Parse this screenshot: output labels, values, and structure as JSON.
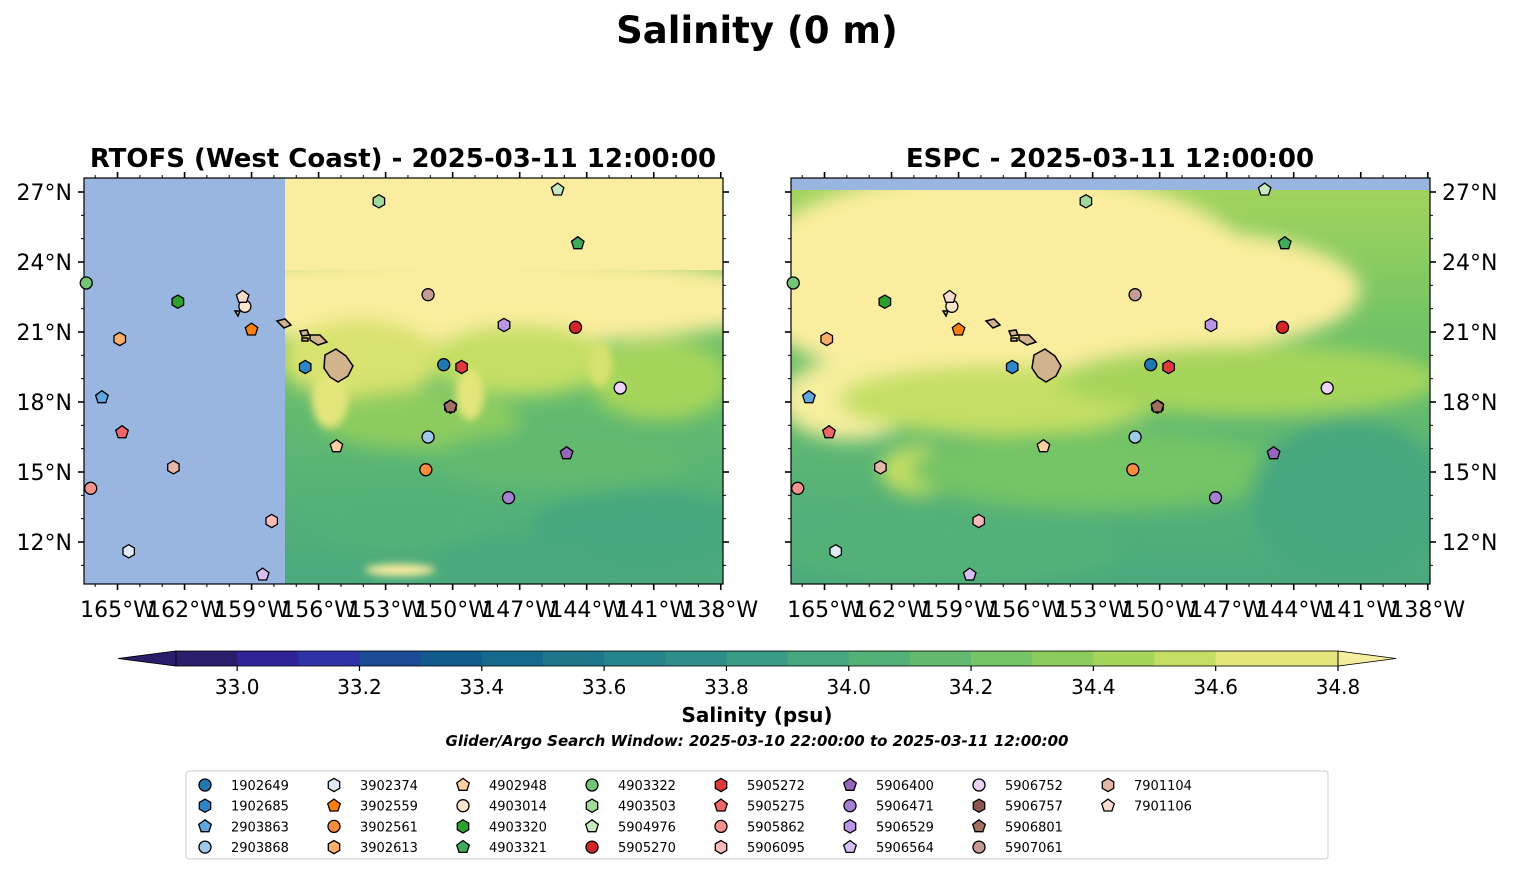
{
  "figure": {
    "title": "Salinity (0 m)",
    "colorbar_label": "Salinity (psu)",
    "search_window": "Glider/Argo Search Window: 2025-03-10 22:00:00 to 2025-03-11 12:00:00"
  },
  "colors": {
    "land": "#d2b48c",
    "nodata": "#98b6e0",
    "salty": "#fbed9f",
    "colorbar": [
      "#2a1d6b",
      "#30249a",
      "#2d32a6",
      "#1b4b94",
      "#115a8e",
      "#14698c",
      "#1e768b",
      "#25838b",
      "#2f8e89",
      "#3a9c85",
      "#46a77e",
      "#53b177",
      "#62ba70",
      "#75c465",
      "#8ccc5e",
      "#a6d55c",
      "#c4df64",
      "#e4e67b",
      "#f5ee9e"
    ]
  },
  "chart_data": [
    {
      "type": "heatmap",
      "panel": "left",
      "title": "RTOFS (West Coast) - 2025-03-11 12:00:00",
      "xlim": [
        -166.5,
        -137.9
      ],
      "ylim": [
        10.2,
        27.6
      ],
      "x_ticks": [
        -165,
        -162,
        -159,
        -156,
        -153,
        -150,
        -147,
        -144,
        -141,
        -138
      ],
      "x_tick_labels": [
        "165°W",
        "162°W",
        "159°W",
        "156°W",
        "153°W",
        "150°W",
        "147°W",
        "144°W",
        "141°W",
        "138°W"
      ],
      "y_ticks": [
        12,
        15,
        18,
        21,
        24,
        27
      ],
      "y_tick_labels": [
        "12°N",
        "15°N",
        "18°N",
        "21°N",
        "24°N",
        "27°N"
      ],
      "grid": false,
      "nodata_west_of_lon": -157.5
    },
    {
      "type": "heatmap",
      "panel": "right",
      "title": "ESPC - 2025-03-11 12:00:00",
      "xlim": [
        -166.5,
        -137.9
      ],
      "ylim": [
        10.2,
        27.6
      ],
      "x_ticks": [
        -165,
        -162,
        -159,
        -156,
        -153,
        -150,
        -147,
        -144,
        -141,
        -138
      ],
      "x_tick_labels": [
        "165°W",
        "162°W",
        "159°W",
        "156°W",
        "153°W",
        "150°W",
        "147°W",
        "144°W",
        "141°W",
        "138°W"
      ],
      "y_ticks": [
        12,
        15,
        18,
        21,
        24,
        27
      ],
      "y_tick_labels": [
        "12°N",
        "15°N",
        "18°N",
        "21°N",
        "24°N",
        "27°N"
      ],
      "grid": false,
      "nodata_north_of_lat": 27.1
    },
    {
      "type": "colorbar",
      "range": [
        32.9,
        34.9
      ],
      "ticks": [
        33.0,
        33.2,
        33.4,
        33.6,
        33.8,
        34.0,
        34.2,
        34.4,
        34.6,
        34.8
      ],
      "tick_labels": [
        "33.0",
        "33.2",
        "33.4",
        "33.6",
        "33.8",
        "34.0",
        "34.2",
        "34.4",
        "34.6",
        "34.8"
      ],
      "label": "Salinity (psu)"
    },
    {
      "type": "scatter",
      "legend_placement": "bottom",
      "series": [
        {
          "name": "1902649",
          "marker": "circle",
          "color": "#1f77b4",
          "lon": -150.4,
          "lat": 19.6
        },
        {
          "name": "1902685",
          "marker": "hexagon",
          "color": "#2e86c9",
          "lon": -156.6,
          "lat": 19.5
        },
        {
          "name": "2903863",
          "marker": "pentagon",
          "color": "#5ea6e0",
          "lon": -165.7,
          "lat": 18.2
        },
        {
          "name": "2903868",
          "marker": "circle",
          "color": "#9ecae9",
          "lon": -151.1,
          "lat": 16.5
        },
        {
          "name": "3902374",
          "marker": "hexagon",
          "color": "#deebf7",
          "lon": -164.5,
          "lat": 11.6
        },
        {
          "name": "3902559",
          "marker": "pentagon",
          "color": "#ff7f0e",
          "lon": -159.0,
          "lat": 21.1
        },
        {
          "name": "3902561",
          "marker": "circle",
          "color": "#fd8d3c",
          "lon": -151.2,
          "lat": 15.1
        },
        {
          "name": "3902613",
          "marker": "hexagon",
          "color": "#fdae6b",
          "lon": -164.9,
          "lat": 20.7
        },
        {
          "name": "4902948",
          "marker": "pentagon",
          "color": "#fdd0a2",
          "lon": -155.2,
          "lat": 16.1
        },
        {
          "name": "4903014",
          "marker": "circle",
          "color": "#fee6ce",
          "lon": -159.3,
          "lat": 22.1
        },
        {
          "name": "4903320",
          "marker": "hexagon",
          "color": "#2ca02c",
          "lon": -162.3,
          "lat": 22.3
        },
        {
          "name": "4903321",
          "marker": "pentagon",
          "color": "#41ab5d",
          "lon": -144.4,
          "lat": 24.8
        },
        {
          "name": "4903322",
          "marker": "circle",
          "color": "#74c476",
          "lon": -166.4,
          "lat": 23.1
        },
        {
          "name": "4903503",
          "marker": "hexagon",
          "color": "#a1d99b",
          "lon": -153.3,
          "lat": 26.6
        },
        {
          "name": "5904976",
          "marker": "pentagon",
          "color": "#c7e9c0",
          "lon": -145.3,
          "lat": 27.1
        },
        {
          "name": "5905270",
          "marker": "circle",
          "color": "#d62728",
          "lon": -144.5,
          "lat": 21.2
        },
        {
          "name": "5905272",
          "marker": "hexagon",
          "color": "#e0393b",
          "lon": -149.6,
          "lat": 19.5
        },
        {
          "name": "5905275",
          "marker": "pentagon",
          "color": "#f0676a",
          "lon": -164.8,
          "lat": 16.7
        },
        {
          "name": "5905862",
          "marker": "circle",
          "color": "#f4928e",
          "lon": -166.2,
          "lat": 14.3
        },
        {
          "name": "5906095",
          "marker": "hexagon",
          "color": "#fcbbb8",
          "lon": -158.1,
          "lat": 12.9
        },
        {
          "name": "5906400",
          "marker": "pentagon",
          "color": "#9467bd",
          "lon": -144.9,
          "lat": 15.8
        },
        {
          "name": "5906471",
          "marker": "circle",
          "color": "#a480d0",
          "lon": -147.5,
          "lat": 13.9
        },
        {
          "name": "5906529",
          "marker": "hexagon",
          "color": "#b996e3",
          "lon": -147.7,
          "lat": 21.3
        },
        {
          "name": "5906564",
          "marker": "pentagon",
          "color": "#d7bff2",
          "lon": -158.5,
          "lat": 10.6
        },
        {
          "name": "5906752",
          "marker": "circle",
          "color": "#ecd4f7",
          "lon": -142.5,
          "lat": 18.6
        },
        {
          "name": "5906757",
          "marker": "hexagon",
          "color": "#8c564b",
          "lon": -150.1,
          "lat": 17.8
        },
        {
          "name": "5906801",
          "marker": "pentagon",
          "color": "#a0715f",
          "lon": -150.1,
          "lat": 17.8
        },
        {
          "name": "5907061",
          "marker": "circle",
          "color": "#c49c94",
          "lon": -151.1,
          "lat": 22.6
        },
        {
          "name": "7901104",
          "marker": "hexagon",
          "color": "#e3b8a8",
          "lon": -162.5,
          "lat": 15.2
        },
        {
          "name": "7901106",
          "marker": "pentagon",
          "color": "#fadbd0",
          "lon": -159.4,
          "lat": 22.5
        }
      ]
    }
  ]
}
